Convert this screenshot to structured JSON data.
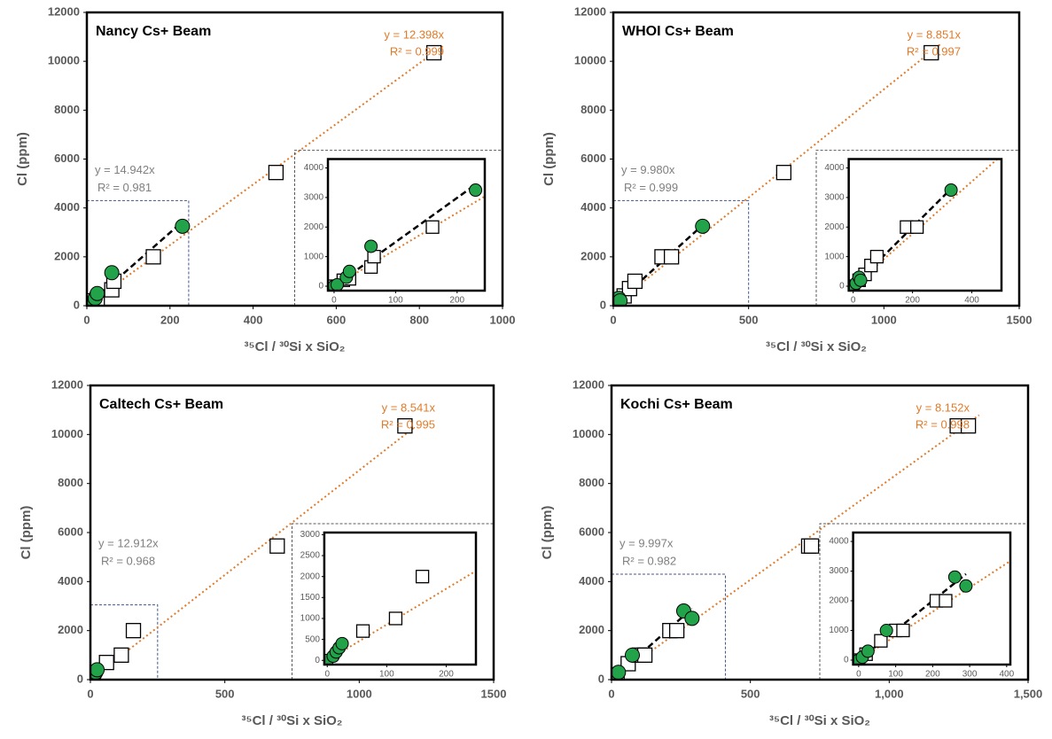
{
  "chart_data": [
    {
      "type": "scatter",
      "title": "Nancy Cs+ Beam",
      "xlabel": "³⁵Cl / ³⁰Si x SiO₂",
      "ylabel": "Cl (ppm)",
      "xlim": [
        0,
        1000
      ],
      "ylim": [
        0,
        12000
      ],
      "xticks": [
        0,
        200,
        400,
        600,
        800,
        1000
      ],
      "yticks": [
        0,
        2000,
        4000,
        6000,
        8000,
        10000,
        12000
      ],
      "series": [
        {
          "marker": "square",
          "color": "#ffffff",
          "x": [
            0,
            15,
            25,
            60,
            65,
            160,
            455,
            835
          ],
          "values": [
            0,
            200,
            250,
            650,
            1000,
            2000,
            5450,
            10350
          ],
          "trend": {
            "slope": 12.398,
            "label": "y = 12.398x",
            "r2_label": "R² = 0.999",
            "color": "#e07b2a",
            "style": "dotted"
          }
        },
        {
          "marker": "circle",
          "color": "#22a34a",
          "x": [
            0,
            5,
            20,
            25,
            60,
            230
          ],
          "values": [
            0,
            50,
            300,
            500,
            1350,
            3250
          ],
          "trend": {
            "slope": 14.942,
            "label": "y = 14.942x",
            "r2_label": "R² = 0.981",
            "color": "#000000",
            "style": "dashed"
          }
        }
      ],
      "inset": {
        "xlim": [
          -10,
          245
        ],
        "ylim": [
          -150,
          4300
        ],
        "xticks": [
          0,
          100,
          200
        ],
        "yticks": [
          0,
          1000,
          2000,
          3000,
          4000
        ]
      }
    },
    {
      "type": "scatter",
      "title": "WHOI Cs+ Beam",
      "xlabel": "³⁵Cl / ³⁰Si x SiO₂",
      "ylabel": "Cl (ppm)",
      "xlim": [
        0,
        1500
      ],
      "ylim": [
        0,
        12000
      ],
      "xticks": [
        0,
        500,
        1000,
        1500
      ],
      "yticks": [
        0,
        2000,
        4000,
        6000,
        8000,
        10000,
        12000
      ],
      "series": [
        {
          "marker": "square",
          "color": "#ffffff",
          "x": [
            0,
            20,
            40,
            60,
            80,
            180,
            215,
            630,
            1175
          ],
          "values": [
            0,
            200,
            400,
            700,
            1000,
            2000,
            2000,
            5450,
            10350
          ],
          "trend": {
            "slope": 8.851,
            "label": "y = 8.851x",
            "r2_label": "R² = 0.997",
            "color": "#e07b2a",
            "style": "dotted"
          }
        },
        {
          "marker": "circle",
          "color": "#22a34a",
          "x": [
            0,
            10,
            20,
            25,
            330
          ],
          "values": [
            0,
            100,
            300,
            200,
            3250
          ],
          "trend": {
            "slope": 9.98,
            "label": "y = 9.980x",
            "r2_label": "R² = 0.999",
            "color": "#000000",
            "style": "dashed"
          }
        }
      ],
      "inset": {
        "xlim": [
          -15,
          500
        ],
        "ylim": [
          -150,
          4300
        ],
        "xticks": [
          0,
          200,
          400
        ],
        "yticks": [
          0,
          1000,
          2000,
          3000,
          4000
        ]
      }
    },
    {
      "type": "scatter",
      "title": "Caltech Cs+ Beam",
      "xlabel": "³⁵Cl / ³⁰Si x SiO₂",
      "ylabel": "Cl (ppm)",
      "xlim": [
        0,
        1500
      ],
      "ylim": [
        0,
        12000
      ],
      "xticks": [
        0,
        500,
        1000,
        1500
      ],
      "yticks": [
        0,
        2000,
        4000,
        6000,
        8000,
        10000,
        12000
      ],
      "series": [
        {
          "marker": "square",
          "color": "#ffffff",
          "x": [
            60,
            115,
            160,
            695,
            1170
          ],
          "values": [
            700,
            1000,
            2000,
            5450,
            10350
          ],
          "trend": {
            "slope": 8.541,
            "label": "y = 8.541x",
            "r2_label": "R² = 0.995",
            "color": "#e07b2a",
            "style": "dotted"
          }
        },
        {
          "marker": "circle",
          "color": "#22a34a",
          "x": [
            0,
            10,
            15,
            20,
            25
          ],
          "values": [
            0,
            100,
            200,
            300,
            400
          ],
          "trend": {
            "slope": 12.912,
            "label": "y = 12.912x",
            "r2_label": "R² = 0.968",
            "color": "#000000",
            "style": "dashed"
          }
        }
      ],
      "inset": {
        "xlim": [
          -5,
          250
        ],
        "ylim": [
          -100,
          3050
        ],
        "xticks": [
          0,
          100,
          200
        ],
        "yticks": [
          0,
          500,
          1000,
          1500,
          2000,
          2500,
          3000
        ]
      }
    },
    {
      "type": "scatter",
      "title": "Kochi Cs+ Beam",
      "xlabel": "³⁵Cl / ³⁰Si x SiO₂",
      "ylabel": "Cl (ppm)",
      "xlim": [
        0,
        1500
      ],
      "ylim": [
        0,
        12000
      ],
      "xticks": [
        0,
        500,
        {
          "value": 1000,
          "label": "1,000"
        },
        {
          "value": 1500,
          "label": "1,500"
        }
      ],
      "yticks": [
        0,
        2000,
        4000,
        6000,
        8000,
        10000,
        12000
      ],
      "series": [
        {
          "marker": "square",
          "color": "#ffffff",
          "x": [
            0,
            20,
            60,
            100,
            120,
            210,
            235,
            710,
            720,
            1245,
            1285
          ],
          "values": [
            0,
            200,
            650,
            1000,
            1000,
            2000,
            2000,
            5450,
            5450,
            10350,
            10350
          ],
          "trend": {
            "slope": 8.152,
            "label": "y = 8.152x",
            "r2_label": "R² = 0.998",
            "color": "#e07b2a",
            "style": "dotted"
          }
        },
        {
          "marker": "circle",
          "color": "#22a34a",
          "x": [
            0,
            10,
            25,
            75,
            260,
            290
          ],
          "values": [
            0,
            100,
            300,
            1000,
            2800,
            2500
          ],
          "trend": {
            "slope": 9.997,
            "label": "y = 9.997x",
            "r2_label": "R² = 0.982",
            "color": "#000000",
            "style": "dashed"
          }
        }
      ],
      "inset": {
        "xlim": [
          -15,
          410
        ],
        "ylim": [
          -150,
          4300
        ],
        "xticks": [
          0,
          100,
          200,
          300,
          400
        ],
        "yticks": [
          0,
          1000,
          2000,
          3000,
          4000
        ]
      }
    }
  ]
}
